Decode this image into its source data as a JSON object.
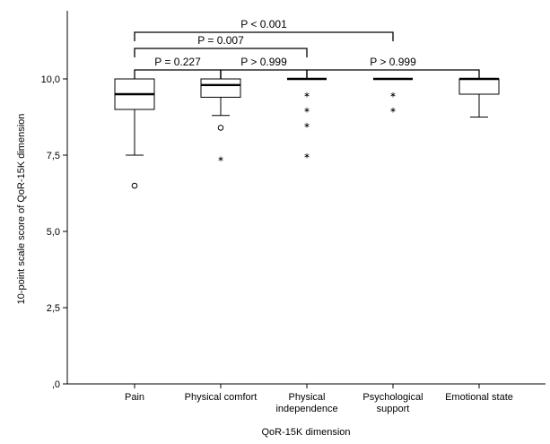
{
  "chart_data": {
    "type": "box",
    "xlabel": "QoR-15K dimension",
    "ylabel": "10-point scale score of QoR-15K dimension",
    "ylim": [
      0,
      12
    ],
    "yticks": [
      {
        "value": 0,
        "label": ",0"
      },
      {
        "value": 2.5,
        "label": "2,5"
      },
      {
        "value": 5,
        "label": "5,0"
      },
      {
        "value": 7.5,
        "label": "7,5"
      },
      {
        "value": 10,
        "label": "10,0"
      }
    ],
    "categories": [
      {
        "lines": [
          "Pain"
        ]
      },
      {
        "lines": [
          "Physical comfort"
        ]
      },
      {
        "lines": [
          "Physical",
          "independence"
        ]
      },
      {
        "lines": [
          "Psychological",
          "support"
        ]
      },
      {
        "lines": [
          "Emotional state"
        ]
      }
    ],
    "boxes": [
      {
        "q1": 9.0,
        "median": 9.5,
        "q3": 10.0,
        "whisker_low": 7.5,
        "whisker_high": 10.0,
        "outliers": [
          {
            "value": 6.5,
            "marker": "circle"
          }
        ]
      },
      {
        "q1": 9.4,
        "median": 9.8,
        "q3": 10.0,
        "whisker_low": 8.8,
        "whisker_high": 10.0,
        "outliers": [
          {
            "value": 8.4,
            "marker": "circle"
          },
          {
            "value": 7.4,
            "marker": "star"
          }
        ]
      },
      {
        "q1": 10.0,
        "median": 10.0,
        "q3": 10.0,
        "whisker_low": 10.0,
        "whisker_high": 10.0,
        "outliers": [
          {
            "value": 9.5,
            "marker": "star"
          },
          {
            "value": 9.0,
            "marker": "star"
          },
          {
            "value": 8.5,
            "marker": "star"
          },
          {
            "value": 7.5,
            "marker": "star"
          }
        ]
      },
      {
        "q1": 10.0,
        "median": 10.0,
        "q3": 10.0,
        "whisker_low": 10.0,
        "whisker_high": 10.0,
        "outliers": [
          {
            "value": 9.5,
            "marker": "star"
          },
          {
            "value": 9.0,
            "marker": "star"
          }
        ]
      },
      {
        "q1": 9.5,
        "median": 10.0,
        "q3": 10.0,
        "whisker_low": 8.75,
        "whisker_high": 10.0,
        "outliers": []
      }
    ],
    "comparisons": [
      {
        "from": 0,
        "to": 3,
        "label": "P < 0.001"
      },
      {
        "from": 0,
        "to": 2,
        "label": "P = 0.007"
      },
      {
        "from": 0,
        "to": 1,
        "label": "P = 0.227"
      },
      {
        "from": 1,
        "to": 2,
        "label": "P > 0.999"
      },
      {
        "from": 2,
        "to": 4,
        "label": "P > 0.999"
      }
    ]
  }
}
